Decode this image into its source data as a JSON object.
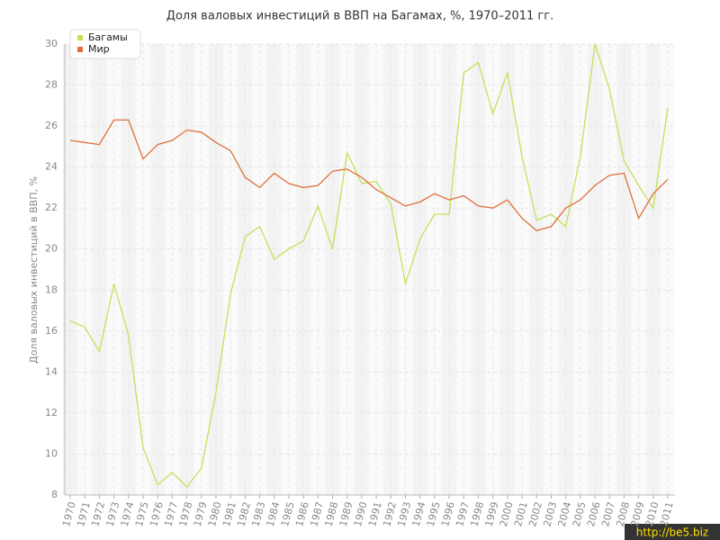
{
  "chart_data": {
    "type": "line",
    "title": "Доля валовых инвестиций в ВВП на Багамах, %, 1970–2011 гг.",
    "y_label": "Доля валовых инвестиций в ВВП, %",
    "categories": [
      "1970",
      "1971",
      "1972",
      "1973",
      "1974",
      "1975",
      "1976",
      "1977",
      "1978",
      "1979",
      "1980",
      "1981",
      "1982",
      "1983",
      "1984",
      "1985",
      "1986",
      "1987",
      "1988",
      "1989",
      "1990",
      "1991",
      "1992",
      "1993",
      "1994",
      "1995",
      "1996",
      "1997",
      "1998",
      "1999",
      "2000",
      "2001",
      "2002",
      "2003",
      "2004",
      "2005",
      "2006",
      "2007",
      "2008",
      "2009",
      "2010",
      "2011"
    ],
    "series": [
      {
        "name": "Багамы",
        "color": "#c5e05a",
        "values": [
          16.5,
          16.2,
          15.0,
          18.3,
          15.8,
          10.3,
          8.5,
          9.1,
          8.4,
          9.3,
          13.0,
          17.8,
          20.6,
          21.1,
          19.5,
          20.0,
          20.4,
          22.1,
          20.0,
          24.7,
          23.2,
          23.3,
          22.2,
          18.3,
          20.5,
          21.7,
          21.7,
          28.6,
          29.1,
          26.6,
          28.6,
          24.5,
          21.4,
          21.7,
          21.1,
          24.5,
          30.0,
          27.8,
          24.3,
          23.1,
          22.0,
          26.9
        ]
      },
      {
        "name": "Мир",
        "color": "#e0703a",
        "values": [
          25.3,
          25.2,
          25.1,
          26.3,
          26.3,
          24.4,
          25.1,
          25.3,
          25.8,
          25.7,
          25.2,
          24.8,
          23.5,
          23.0,
          23.7,
          23.2,
          23.0,
          23.1,
          23.8,
          23.9,
          23.5,
          22.9,
          22.5,
          22.1,
          22.3,
          22.7,
          22.4,
          22.6,
          22.1,
          22.0,
          22.4,
          21.5,
          20.9,
          21.1,
          22.0,
          22.4,
          23.1,
          23.6,
          23.7,
          21.5,
          22.7,
          23.4
        ]
      }
    ],
    "ylim": [
      8,
      30
    ],
    "yticks": [
      8,
      10,
      12,
      14,
      16,
      18,
      20,
      22,
      24,
      26,
      28,
      30
    ],
    "grid": true,
    "legend": "top-left",
    "watermark": "http://be5.biz"
  }
}
